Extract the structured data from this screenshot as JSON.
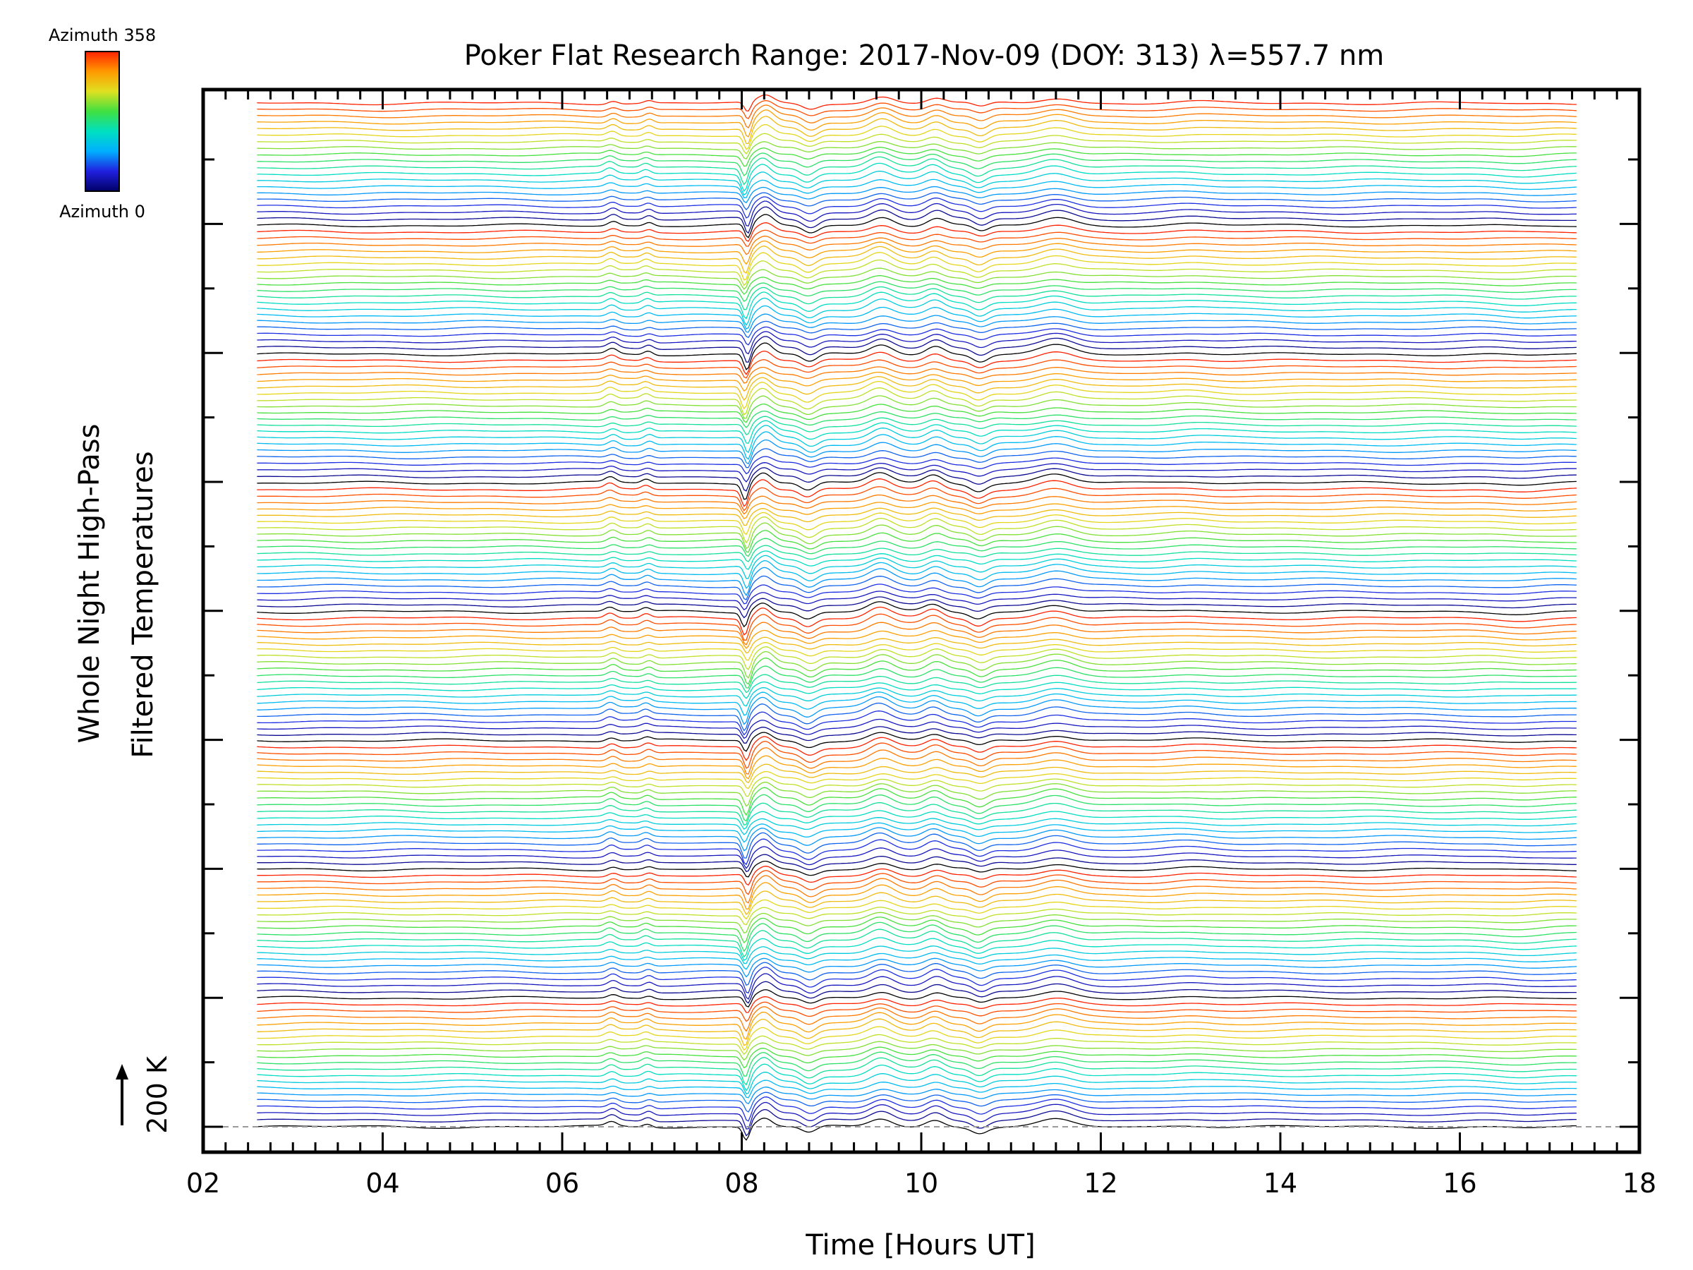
{
  "chart_data": {
    "type": "line",
    "title": "Poker Flat Research Range: 2017-Nov-09 (DOY: 313) λ=557.7 nm",
    "xlabel": "Time [Hours UT]",
    "ylabel_lines": [
      "Whole Night High-Pass",
      "Filtered Temperatures"
    ],
    "scale_marker": "200 K",
    "x_ticks": [
      "02",
      "04",
      "06",
      "08",
      "10",
      "12",
      "14",
      "16",
      "18"
    ],
    "xlim": [
      2,
      18
    ],
    "data_x_range": [
      2.6,
      17.3
    ],
    "grid": false,
    "colorbar": {
      "top_label": "Azimuth 358",
      "bottom_label": "Azimuth 0",
      "colormap": "rainbow",
      "colors": [
        "#000066",
        "#2020e0",
        "#00b0ff",
        "#00e0c0",
        "#40e040",
        "#e0e020",
        "#ff9900",
        "#ff2200"
      ]
    },
    "series_count": 160,
    "trace_period": 20,
    "offset_per_trace_K": 38.5,
    "reference_line": "dashed gray baseline",
    "features": [
      {
        "t": 6.55,
        "amplitude_K": 25,
        "width_h": 0.08
      },
      {
        "t": 6.95,
        "amplitude_K": 20,
        "width_h": 0.07
      },
      {
        "t": 8.05,
        "amplitude_K": -80,
        "width_h": 0.05
      },
      {
        "t": 8.25,
        "amplitude_K": 55,
        "width_h": 0.12
      },
      {
        "t": 8.75,
        "amplitude_K": -40,
        "width_h": 0.12
      },
      {
        "t": 9.55,
        "amplitude_K": 50,
        "width_h": 0.18
      },
      {
        "t": 10.15,
        "amplitude_K": 40,
        "width_h": 0.14
      },
      {
        "t": 10.65,
        "amplitude_K": -35,
        "width_h": 0.12
      },
      {
        "t": 11.5,
        "amplitude_K": 40,
        "width_h": 0.25
      },
      {
        "t": 13.0,
        "amplitude_K": 10,
        "width_h": 0.3
      },
      {
        "t": 16.7,
        "amplitude_K": -8,
        "width_h": 0.3
      }
    ]
  }
}
